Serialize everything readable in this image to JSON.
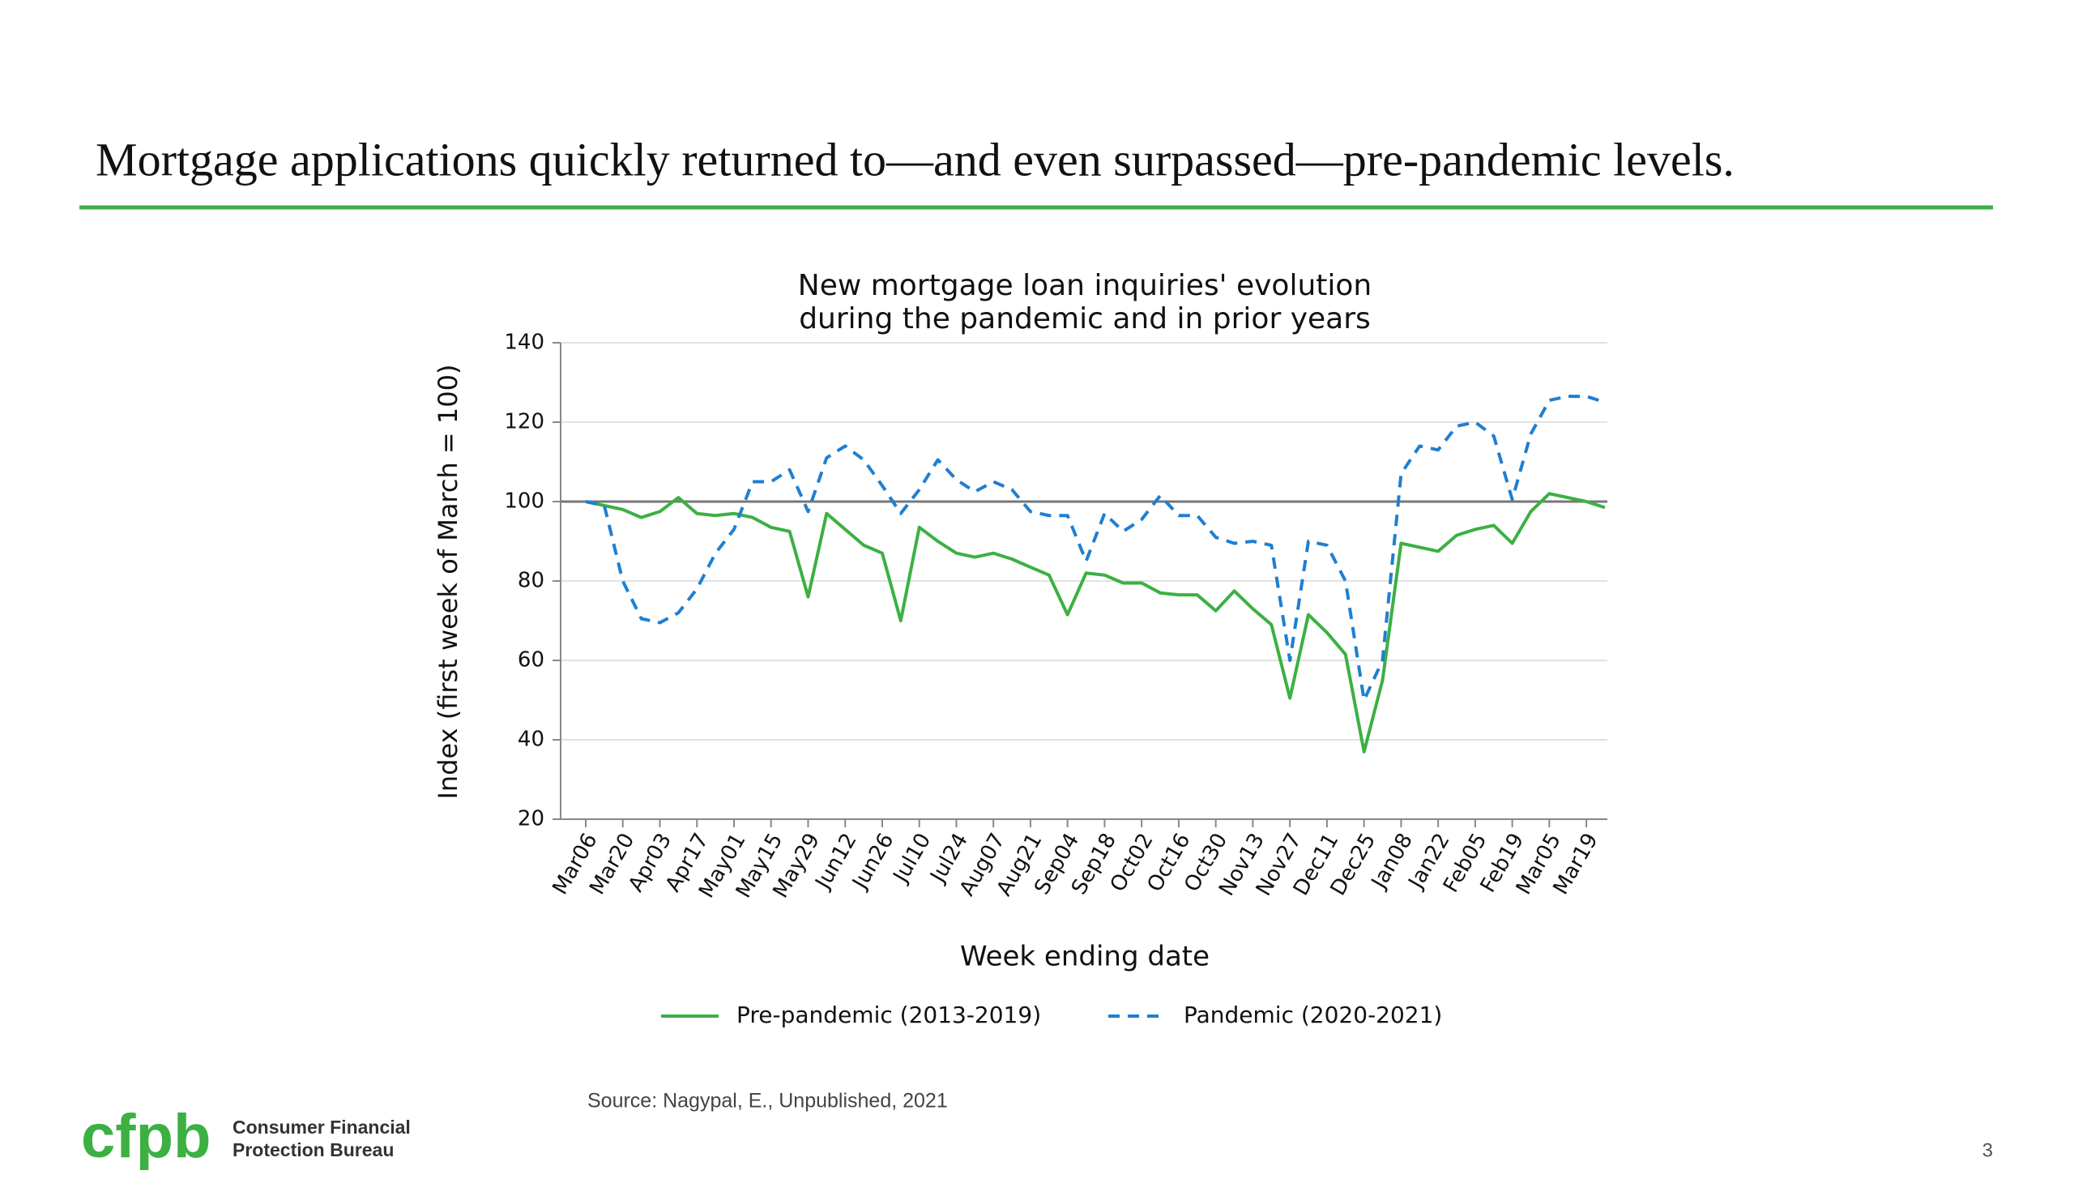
{
  "slide_title": "Mortgage applications quickly returned to—and even surpassed—pre-pandemic levels.",
  "chart_data": {
    "type": "line",
    "title": [
      "New mortgage loan inquiries' evolution",
      "during the pandemic and in prior years"
    ],
    "x_label": "Week ending date",
    "y_label": "Index (first week of March = 100)",
    "categories": [
      "Mar06",
      null,
      "Mar20",
      null,
      "Apr03",
      null,
      "Apr17",
      null,
      "May01",
      null,
      "May15",
      null,
      "May29",
      null,
      "Jun12",
      null,
      "Jun26",
      null,
      "Jul10",
      null,
      "Jul24",
      null,
      "Aug07",
      null,
      "Aug21",
      null,
      "Sep04",
      null,
      "Sep18",
      null,
      "Oct02",
      null,
      "Oct16",
      null,
      "Oct30",
      null,
      "Nov13",
      null,
      "Nov27",
      null,
      "Dec11",
      null,
      "Dec25",
      null,
      "Jan08",
      null,
      "Jan22",
      null,
      "Feb05",
      null,
      "Feb19",
      null,
      "Mar05",
      null,
      "Mar19",
      null
    ],
    "series": [
      {
        "name": "Pre-pandemic (2013-2019)",
        "color": "#3cb043",
        "dashed": false,
        "values": [
          100,
          99,
          98,
          96,
          97.5,
          101,
          97,
          96.5,
          97,
          96,
          93.5,
          92.5,
          76,
          97,
          93,
          89,
          87,
          70,
          93.5,
          90,
          87,
          86,
          87,
          85.5,
          83.5,
          81.5,
          71.5,
          82,
          81.5,
          79.5,
          79.5,
          77,
          76.5,
          76.5,
          72.5,
          77.5,
          73,
          69,
          50.5,
          71.5,
          67,
          61.5,
          37,
          55,
          89.5,
          88.5,
          87.5,
          91.5,
          93,
          94,
          89.5,
          97.5,
          102,
          101,
          100,
          98.5
        ]
      },
      {
        "name": "Pandemic (2020-2021)",
        "color": "#1f7fd1",
        "dashed": true,
        "values": [
          100,
          99,
          80,
          70.5,
          69.5,
          72,
          78,
          87,
          93,
          105,
          105,
          108,
          97.5,
          111,
          114,
          110.5,
          104,
          97,
          103,
          110.5,
          105.5,
          102.5,
          105,
          103,
          97.5,
          96.5,
          96.5,
          85,
          97,
          92.5,
          95.5,
          101.5,
          96.5,
          96.5,
          91,
          89.5,
          90,
          89,
          60,
          90,
          89,
          80,
          50,
          60,
          107,
          114,
          113,
          119,
          120,
          116.5,
          100.5,
          117,
          125.5,
          126.5,
          126.5,
          125
        ]
      }
    ],
    "reference_line": 100,
    "ylim": [
      20,
      140
    ],
    "yticks": [
      20,
      40,
      60,
      80,
      100,
      120,
      140
    ],
    "grid": true
  },
  "source": "Source: Nagypal, E., Unpublished, 2021",
  "logo": {
    "mark": "cfpb",
    "line1": "Consumer Financial",
    "line2": "Protection Bureau"
  },
  "page_number": "3"
}
